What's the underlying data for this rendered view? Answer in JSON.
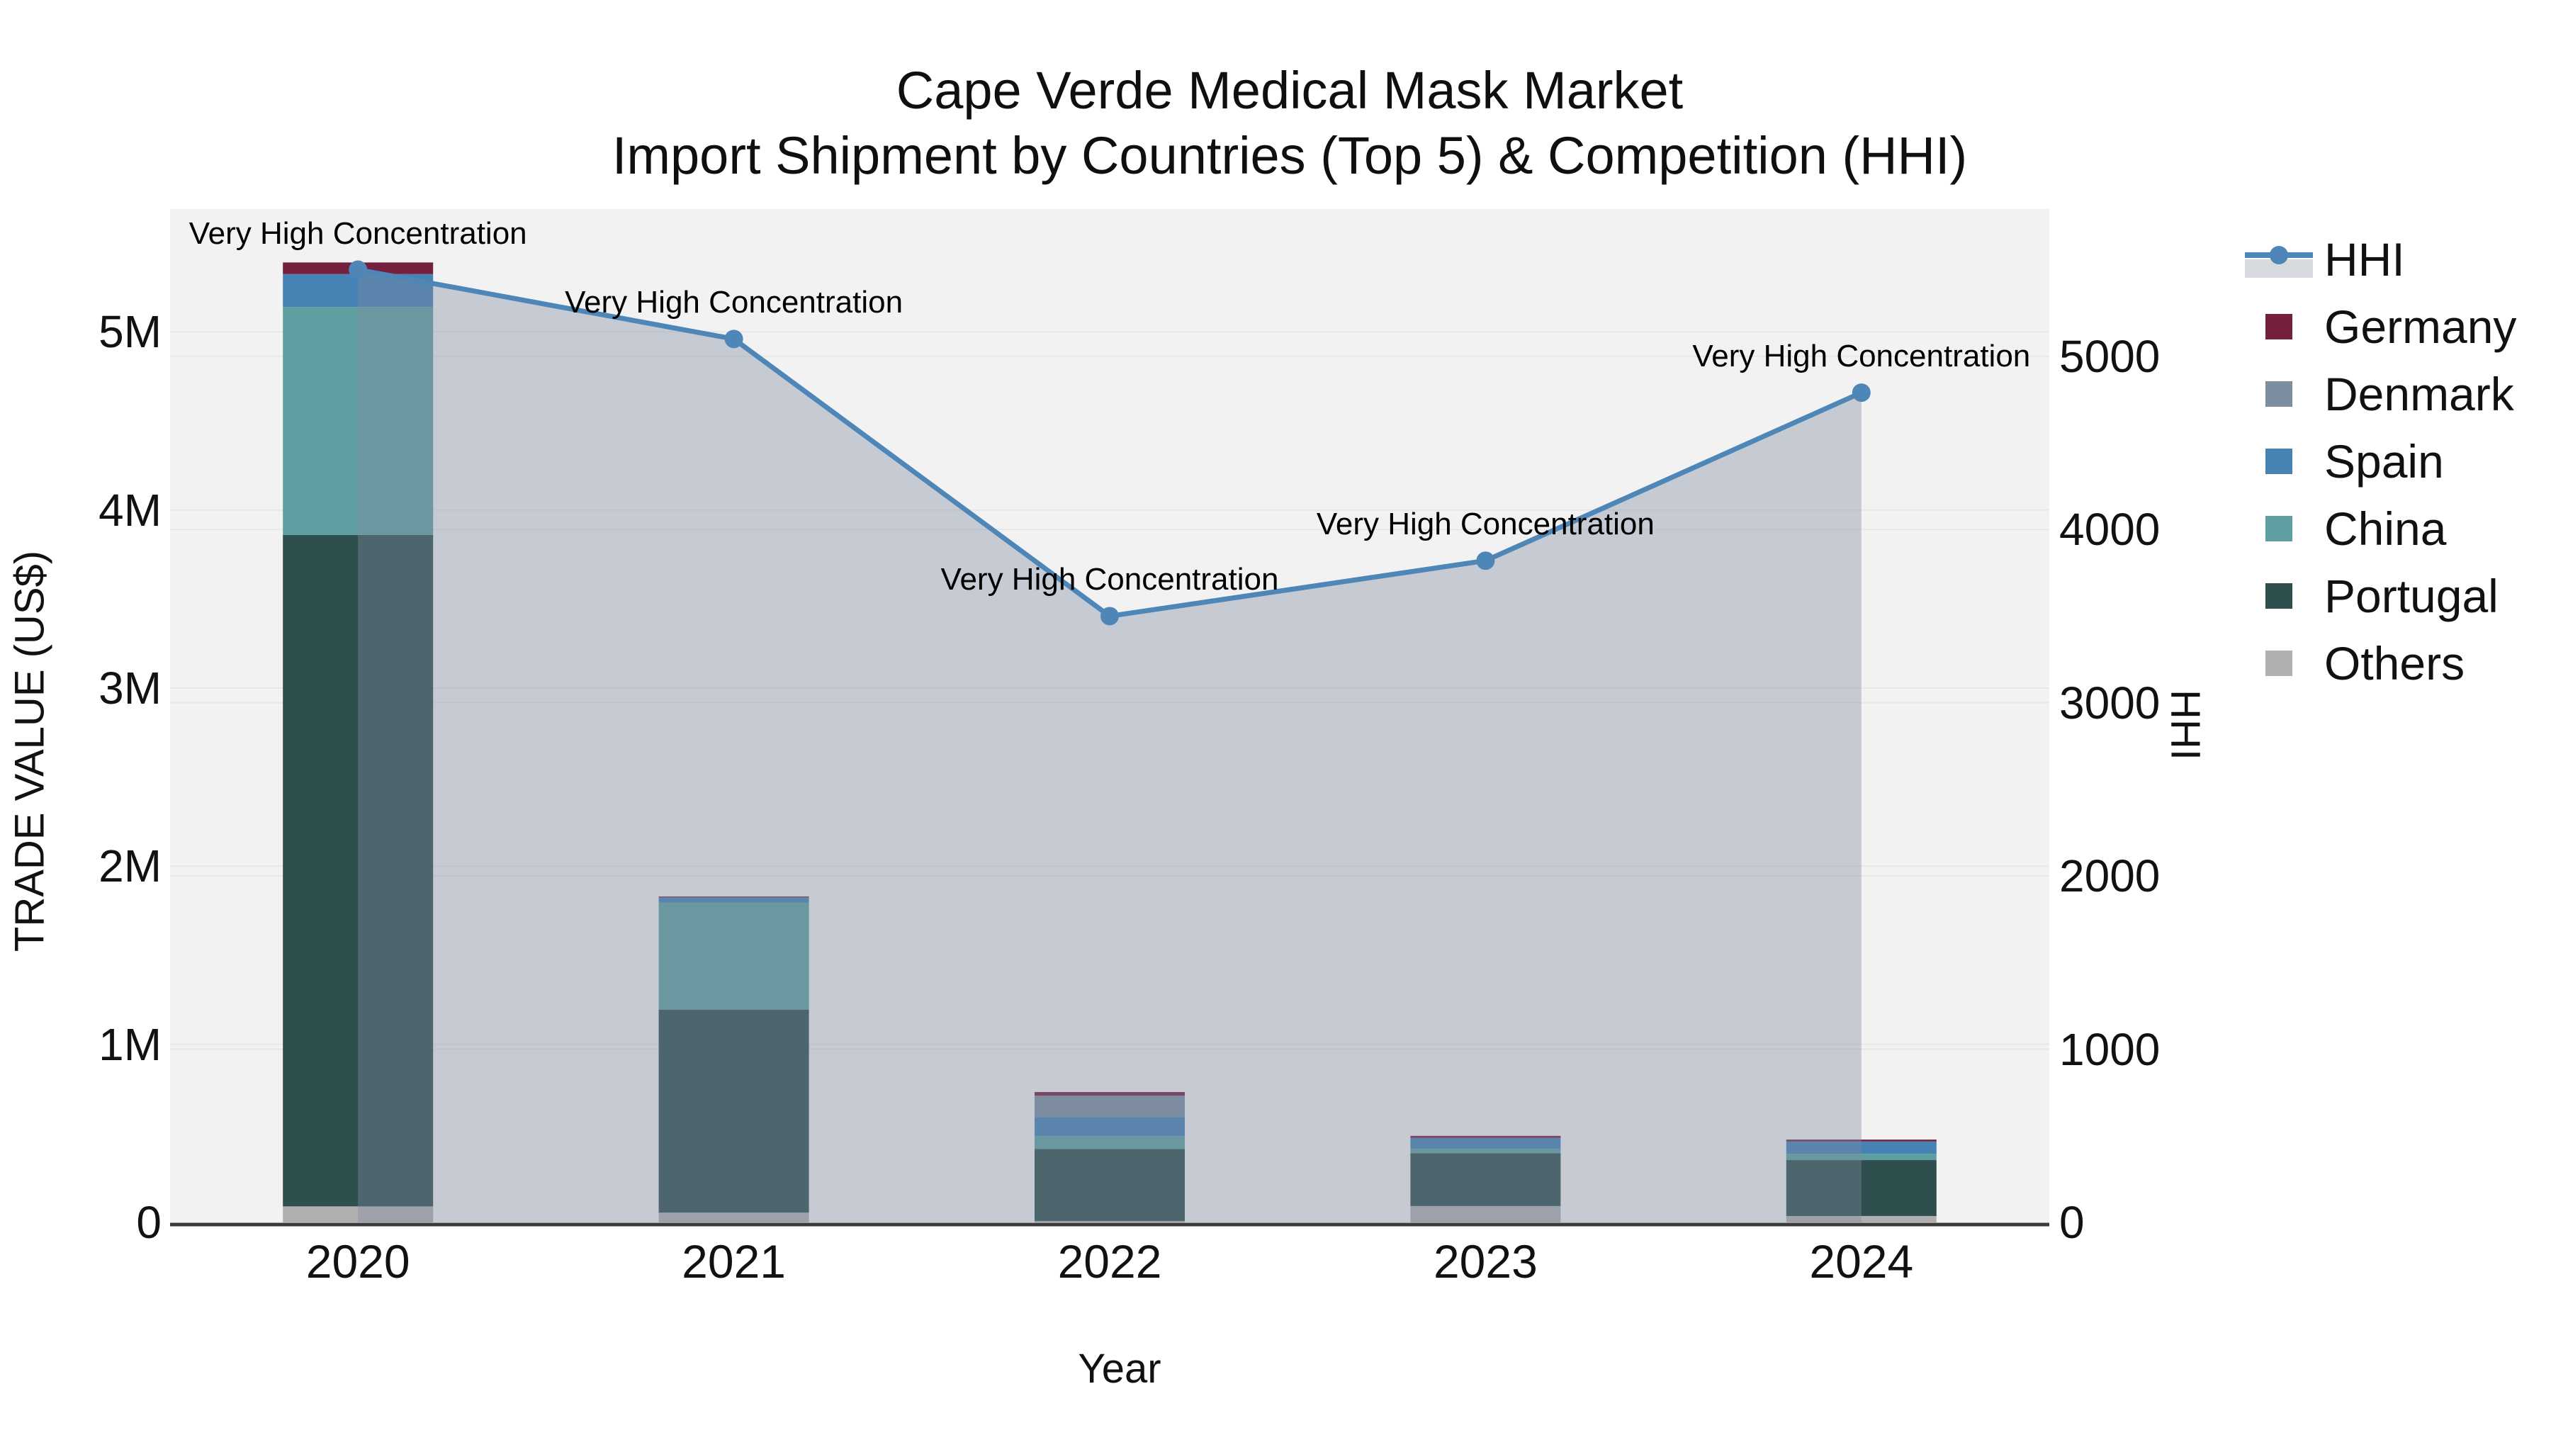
{
  "title": {
    "line1": "Cape Verde Medical Mask Market",
    "line2": "Import Shipment by Countries (Top 5) & Competition (HHI)"
  },
  "axes": {
    "x_title": "Year",
    "y_left_title": "TRADE VALUE (US$)",
    "y_right_title": "HHI"
  },
  "colors": {
    "plot_background": "#f2f2f2",
    "gridline": "#e7e7e7",
    "x_axis_line": "#3a3a3a",
    "hhi_line": "#4e86b8",
    "hhi_area_fill": "rgba(125,140,160,0.38)",
    "legend_hhi_patch": "#d6dade"
  },
  "chart_data": {
    "type": "combo_stacked_bar_line",
    "title": "Cape Verde Medical Mask Market — Import Shipment by Countries (Top 5) & Competition (HHI)",
    "categories": [
      "2020",
      "2021",
      "2022",
      "2023",
      "2024"
    ],
    "bar_unit": "US$ trade value",
    "bar_series": [
      {
        "name": "Others",
        "color": "#b0b0b0",
        "values": [
          90000,
          55000,
          8000,
          92000,
          36000
        ]
      },
      {
        "name": "Portugal",
        "color": "#2F4F4F",
        "values": [
          3770000,
          1140000,
          405000,
          296000,
          314000
        ]
      },
      {
        "name": "China",
        "color": "#5F9EA0",
        "values": [
          1280000,
          600000,
          72000,
          26000,
          35000
        ]
      },
      {
        "name": "Spain",
        "color": "#4682B4",
        "values": [
          185000,
          30000,
          107000,
          60000,
          70000
        ]
      },
      {
        "name": "Denmark",
        "color": "#7d8da0",
        "values": [
          0,
          0,
          120000,
          0,
          0
        ]
      },
      {
        "name": "Germany",
        "color": "#741f3d",
        "values": [
          65000,
          5000,
          20000,
          12000,
          10000
        ]
      }
    ],
    "bar_totals": [
      5390000,
      1830000,
      732000,
      486000,
      465000
    ],
    "line_series": {
      "name": "HHI",
      "axis": "right",
      "color": "#4e86b8",
      "fill": "tozeroy",
      "fill_color": "rgba(125,140,160,0.38)",
      "values": [
        5500,
        5100,
        3500,
        3820,
        4790
      ]
    },
    "y_left_range": [
      0,
      5690000
    ],
    "y_right_range": [
      0,
      5850
    ],
    "left_ticks": [
      {
        "v": 0,
        "label": "0"
      },
      {
        "v": 1000000,
        "label": "1M"
      },
      {
        "v": 2000000,
        "label": "2M"
      },
      {
        "v": 3000000,
        "label": "3M"
      },
      {
        "v": 4000000,
        "label": "4M"
      },
      {
        "v": 5000000,
        "label": "5M"
      }
    ],
    "right_ticks": [
      {
        "v": 0,
        "label": "0"
      },
      {
        "v": 1000,
        "label": "1000"
      },
      {
        "v": 2000,
        "label": "2000"
      },
      {
        "v": 3000,
        "label": "3000"
      },
      {
        "v": 4000,
        "label": "4000"
      },
      {
        "v": 5000,
        "label": "5000"
      }
    ],
    "annotations": [
      {
        "x": "2020",
        "text": "Very High Concentration"
      },
      {
        "x": "2021",
        "text": "Very High Concentration"
      },
      {
        "x": "2022",
        "text": "Very High Concentration"
      },
      {
        "x": "2023",
        "text": "Very High Concentration"
      },
      {
        "x": "2024",
        "text": "Very High Concentration"
      }
    ],
    "legend_position": "right",
    "legend_order": [
      "HHI",
      "Germany",
      "Denmark",
      "Spain",
      "China",
      "Portugal",
      "Others"
    ],
    "grid": true
  }
}
